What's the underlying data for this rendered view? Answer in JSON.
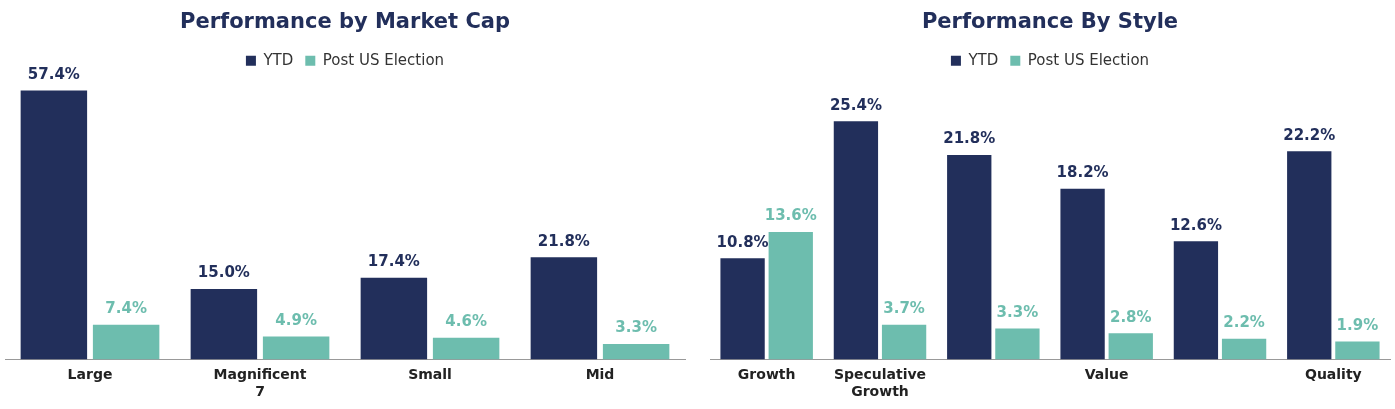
{
  "chart_data": [
    {
      "type": "bar",
      "title": "Performance by Market Cap",
      "categories": [
        "Large",
        "Magnificent 7",
        "Small",
        "Mid"
      ],
      "series": [
        {
          "name": "YTD",
          "color": "#222f5b",
          "values": [
            57.4,
            15.0,
            17.4,
            21.8
          ],
          "value_labels": [
            "57.4%",
            "15.0%",
            "17.4%",
            "21.8%"
          ]
        },
        {
          "name": "Post US Election",
          "color": "#6dbdae",
          "values": [
            7.4,
            4.9,
            4.6,
            3.3
          ],
          "value_labels": [
            "7.4%",
            "4.9%",
            "4.6%",
            "3.3%"
          ]
        }
      ],
      "legend": "top",
      "grid": false,
      "tick_labels": "x"
    },
    {
      "type": "bar",
      "title": "Performance By Style",
      "categories": [
        "Growth",
        "Speculative Growth",
        null,
        "Value",
        null,
        "Quality"
      ],
      "series": [
        {
          "name": "YTD",
          "color": "#222f5b",
          "values": [
            10.8,
            25.4,
            21.8,
            18.2,
            12.6,
            22.2
          ],
          "value_labels": [
            "10.8%",
            "25.4%",
            "21.8%",
            "18.2%",
            "12.6%",
            "22.2%"
          ]
        },
        {
          "name": "Post US Election",
          "color": "#6dbdae",
          "values": [
            13.6,
            3.7,
            3.3,
            2.8,
            2.2,
            1.9
          ],
          "value_labels": [
            "13.6%",
            "3.7%",
            "3.3%",
            "2.8%",
            "2.2%",
            "1.9%"
          ]
        }
      ],
      "legend": "top",
      "grid": false,
      "tick_labels": "x"
    }
  ]
}
